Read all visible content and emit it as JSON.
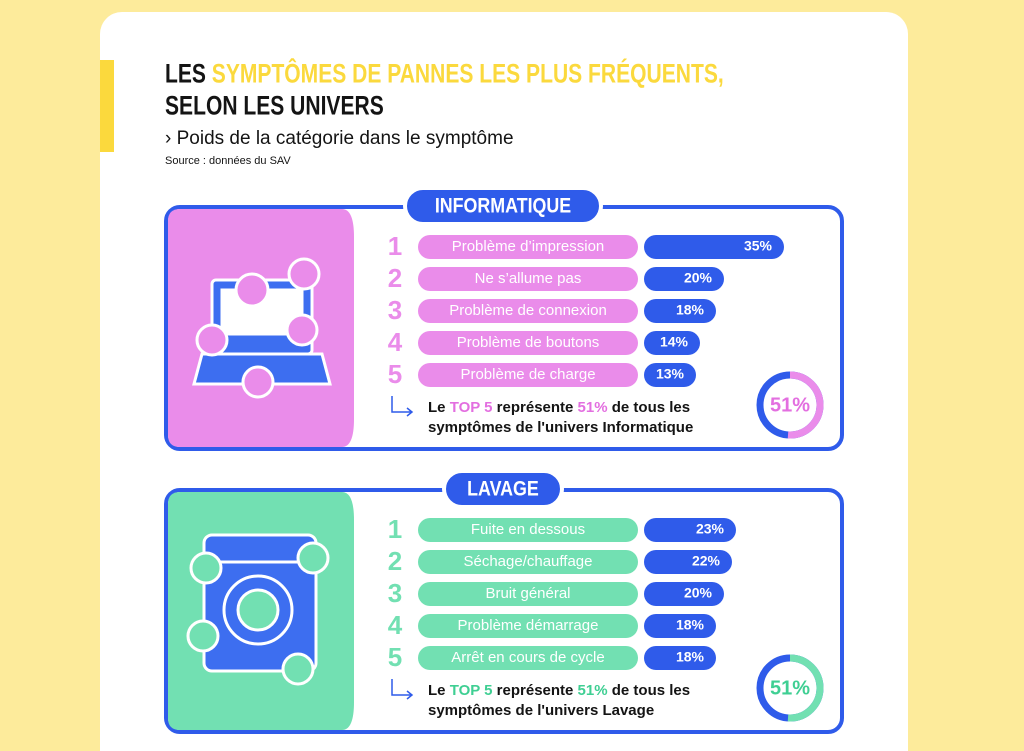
{
  "header": {
    "title": [
      [
        {
          "text": "LES "
        },
        {
          "text": "SYMPTÔMES DE PANNES LES PLUS FRÉQUENTS,",
          "highlight": true
        }
      ],
      [
        {
          "text": "SELON LES UNIVERS"
        }
      ]
    ],
    "subtitle": "› Poids de la catégorie dans le symptôme",
    "source": "Source : données du SAV"
  },
  "sections": [
    {
      "title": "INFORMATIQUE",
      "color": "#ea8cea",
      "accent": "#e36fe0",
      "items": [
        {
          "rank": 1,
          "label": "Problème d’impression",
          "value": 35,
          "value_label": "35%"
        },
        {
          "rank": 2,
          "label": "Ne s’allume pas",
          "value": 20,
          "value_label": "20%"
        },
        {
          "rank": 3,
          "label": "Problème de connexion",
          "value": 18,
          "value_label": "18%"
        },
        {
          "rank": 4,
          "label": "Problème de boutons",
          "value": 14,
          "value_label": "14%"
        },
        {
          "rank": 5,
          "label": "Problème de charge",
          "value": 13,
          "value_label": "13%"
        }
      ],
      "note": [
        [
          {
            "text": "Le "
          },
          {
            "text": "TOP 5",
            "highlight": true
          },
          {
            "text": " représente "
          },
          {
            "text": "51%",
            "highlight": true
          },
          {
            "text": " de tous les"
          }
        ],
        [
          {
            "text": "symptômes de l'univers Informatique"
          }
        ]
      ],
      "total": 51,
      "total_label": "51%"
    },
    {
      "title": "LAVAGE",
      "color": "#72e0b2",
      "accent": "#3fcf93",
      "items": [
        {
          "rank": 1,
          "label": "Fuite en dessous",
          "value": 23,
          "value_label": "23%"
        },
        {
          "rank": 2,
          "label": "Séchage/chauffage",
          "value": 22,
          "value_label": "22%"
        },
        {
          "rank": 3,
          "label": "Bruit général",
          "value": 20,
          "value_label": "20%"
        },
        {
          "rank": 4,
          "label": "Problème démarrage",
          "value": 18,
          "value_label": "18%"
        },
        {
          "rank": 5,
          "label": "Arrêt en cours de cycle",
          "value": 18,
          "value_label": "18%"
        }
      ],
      "note": [
        [
          {
            "text": "Le "
          },
          {
            "text": "TOP 5",
            "highlight": true
          },
          {
            "text": " représente "
          },
          {
            "text": "51%",
            "highlight": true
          },
          {
            "text": " de tous les"
          }
        ],
        [
          {
            "text": "symptômes de l'univers Lavage"
          }
        ]
      ],
      "total": 51,
      "total_label": "51%"
    }
  ]
}
